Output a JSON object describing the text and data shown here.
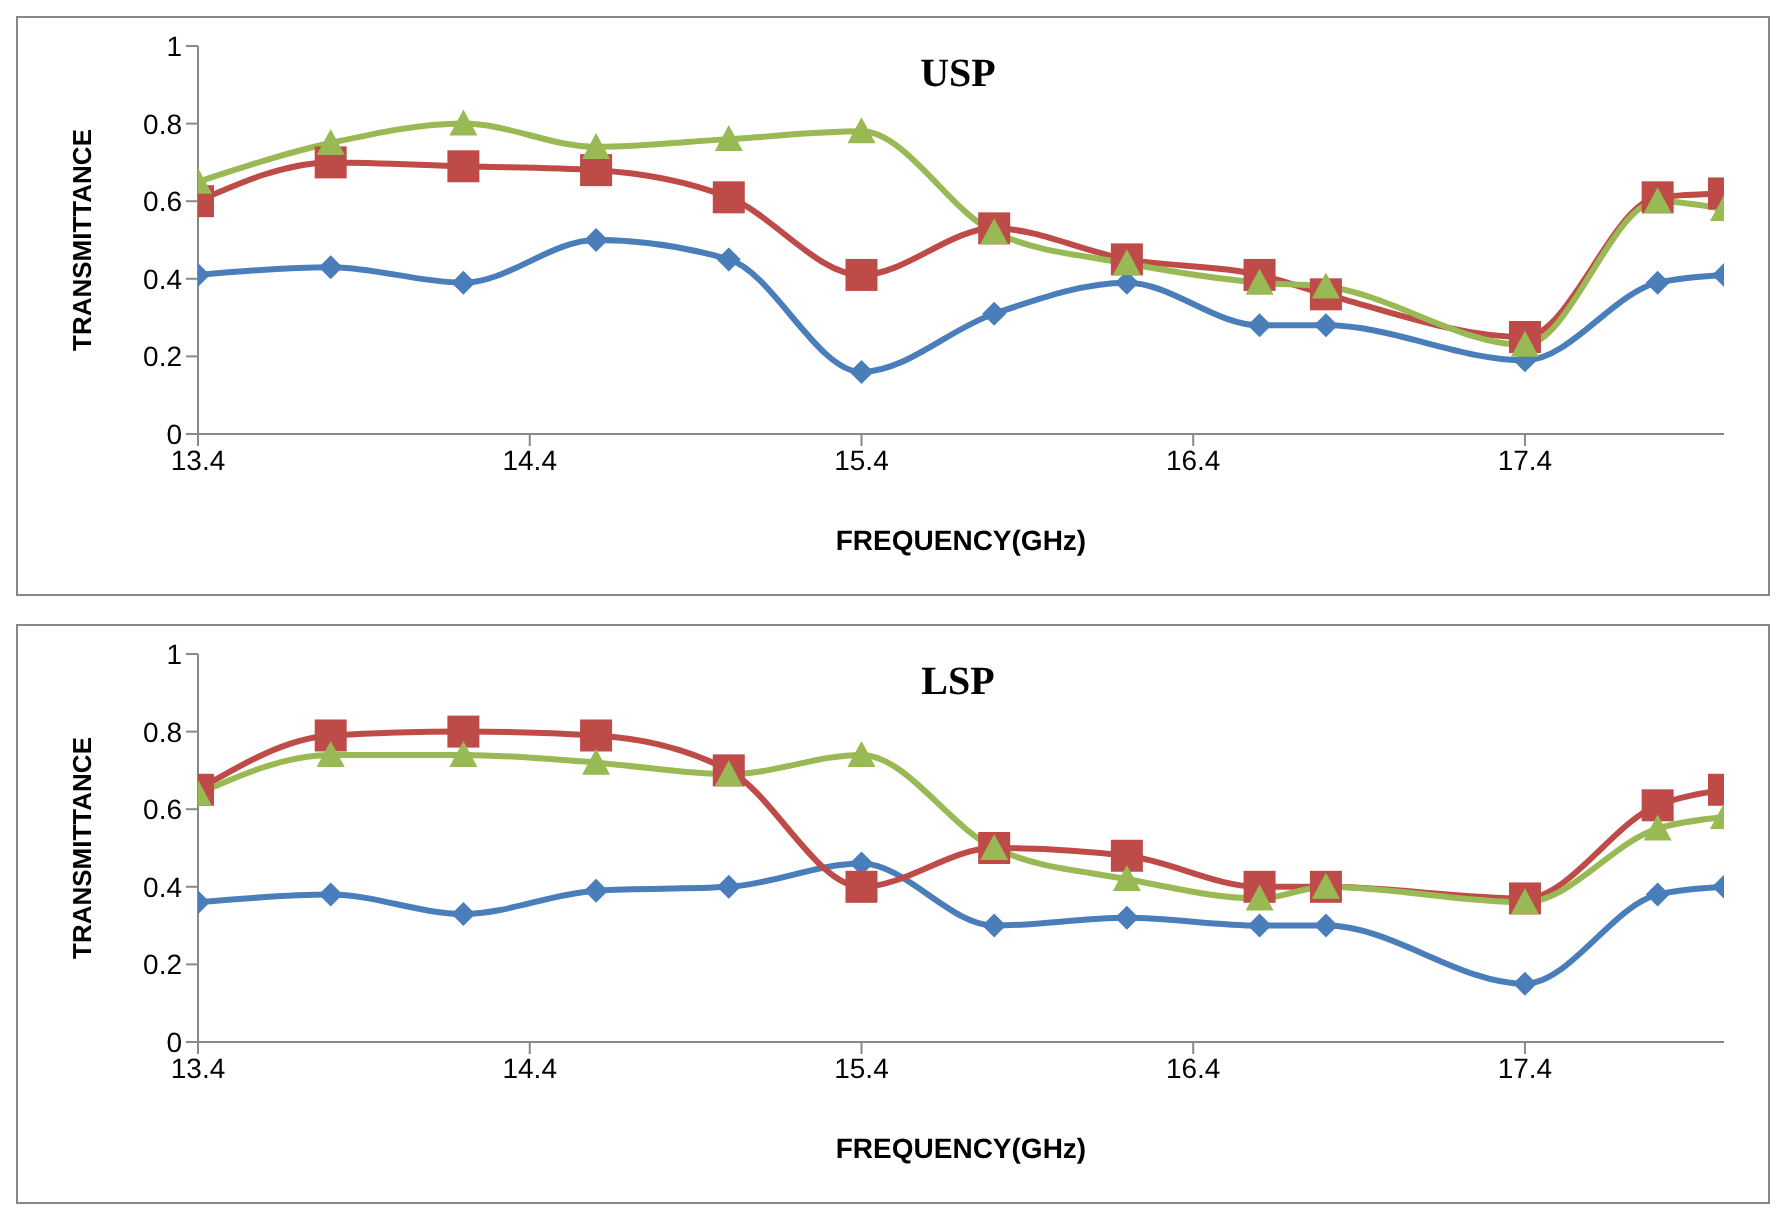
{
  "chart_data": [
    {
      "type": "line",
      "title": "USP",
      "xlabel": "FREQUENCY(GHz)",
      "ylabel": "TRANSMITTANCE",
      "x": [
        13.4,
        13.8,
        14.2,
        14.6,
        15.0,
        15.4,
        15.8,
        16.2,
        16.6,
        16.8,
        17.4,
        17.8,
        18.0
      ],
      "xlim": [
        13.4,
        18.0
      ],
      "xticks": [
        13.4,
        14.4,
        15.4,
        16.4,
        17.4
      ],
      "ylim": [
        0,
        1
      ],
      "yticks": [
        0,
        0.2,
        0.4,
        0.6,
        0.8,
        1
      ],
      "grid": false,
      "legend": false,
      "line_style": "solid",
      "series": [
        {
          "color": "#4a7ebb",
          "marker": "diamond",
          "values": [
            0.41,
            0.43,
            0.39,
            0.5,
            0.45,
            0.16,
            0.31,
            0.39,
            0.28,
            0.28,
            0.19,
            0.39,
            0.41
          ]
        },
        {
          "color": "#be4b48",
          "marker": "square",
          "values": [
            0.6,
            0.7,
            0.69,
            0.68,
            0.61,
            0.41,
            0.53,
            0.45,
            0.41,
            0.36,
            0.25,
            0.61,
            0.62
          ]
        },
        {
          "color": "#98b954",
          "marker": "triangle",
          "values": [
            0.65,
            0.75,
            0.8,
            0.74,
            0.76,
            0.78,
            0.52,
            0.44,
            0.39,
            0.38,
            0.23,
            0.6,
            0.58
          ]
        }
      ]
    },
    {
      "type": "line",
      "title": "LSP",
      "xlabel": "FREQUENCY(GHz)",
      "ylabel": "TRANSMITTANCE",
      "x": [
        13.4,
        13.8,
        14.2,
        14.6,
        15.0,
        15.4,
        15.8,
        16.2,
        16.6,
        16.8,
        17.4,
        17.8,
        18.0
      ],
      "xlim": [
        13.4,
        18.0
      ],
      "xticks": [
        13.4,
        14.4,
        15.4,
        16.4,
        17.4
      ],
      "ylim": [
        0,
        1
      ],
      "yticks": [
        0,
        0.2,
        0.4,
        0.6,
        0.8,
        1
      ],
      "grid": false,
      "legend": false,
      "line_style": "solid",
      "series": [
        {
          "color": "#4a7ebb",
          "marker": "diamond",
          "values": [
            0.36,
            0.38,
            0.33,
            0.39,
            0.4,
            0.46,
            0.3,
            0.32,
            0.3,
            0.3,
            0.15,
            0.38,
            0.4
          ]
        },
        {
          "color": "#be4b48",
          "marker": "square",
          "values": [
            0.65,
            0.79,
            0.8,
            0.79,
            0.7,
            0.4,
            0.5,
            0.48,
            0.4,
            0.4,
            0.37,
            0.61,
            0.65
          ]
        },
        {
          "color": "#98b954",
          "marker": "triangle",
          "values": [
            0.64,
            0.74,
            0.74,
            0.72,
            0.69,
            0.74,
            0.5,
            0.42,
            0.37,
            0.4,
            0.36,
            0.55,
            0.58
          ]
        }
      ]
    }
  ]
}
